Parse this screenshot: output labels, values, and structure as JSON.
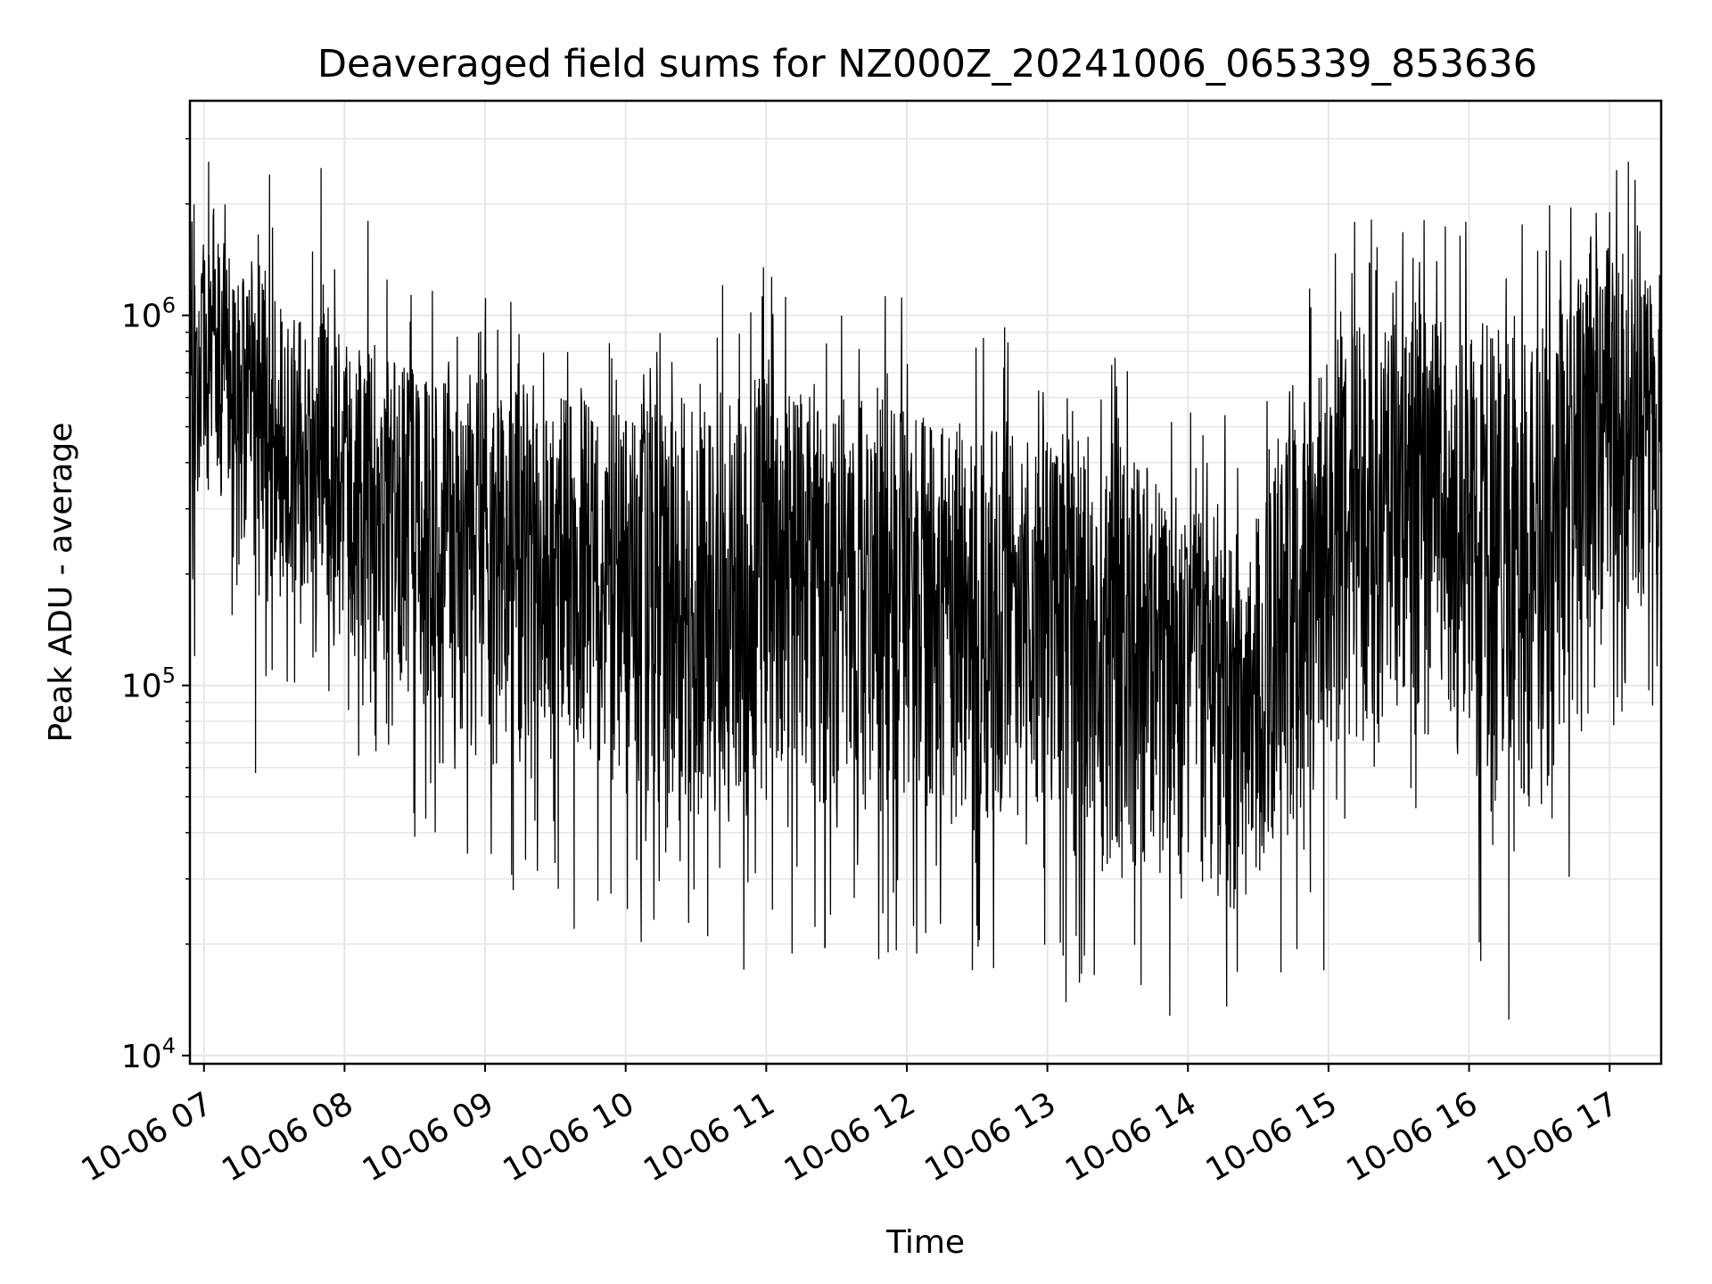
{
  "chart_data": {
    "type": "line",
    "title": "Deaveraged field sums for NZ000Z_20241006_065339_853636",
    "xlabel": "Time",
    "ylabel": "Peak ADU - average",
    "yscale": "log",
    "ylim": [
      9500,
      3800000
    ],
    "xlim": [
      "2024-10-06 06:54",
      "2024-10-06 17:22"
    ],
    "grid": true,
    "line_color": "#000000",
    "x_ticks": [
      {
        "value": "2024-10-06 07:00",
        "label": "10-06 07"
      },
      {
        "value": "2024-10-06 08:00",
        "label": "10-06 08"
      },
      {
        "value": "2024-10-06 09:00",
        "label": "10-06 09"
      },
      {
        "value": "2024-10-06 10:00",
        "label": "10-06 10"
      },
      {
        "value": "2024-10-06 11:00",
        "label": "10-06 11"
      },
      {
        "value": "2024-10-06 12:00",
        "label": "10-06 12"
      },
      {
        "value": "2024-10-06 13:00",
        "label": "10-06 13"
      },
      {
        "value": "2024-10-06 14:00",
        "label": "10-06 14"
      },
      {
        "value": "2024-10-06 15:00",
        "label": "10-06 15"
      },
      {
        "value": "2024-10-06 16:00",
        "label": "10-06 16"
      },
      {
        "value": "2024-10-06 17:00",
        "label": "10-06 17"
      }
    ],
    "y_ticks": [
      {
        "value": 10000,
        "base": "10",
        "exp": "4"
      },
      {
        "value": 100000,
        "base": "10",
        "exp": "5"
      },
      {
        "value": 1000000,
        "base": "10",
        "exp": "6"
      }
    ],
    "series": [
      {
        "envelope": {
          "times": [
            "2024-10-06 06:54",
            "2024-10-06 07:00",
            "2024-10-06 07:30",
            "2024-10-06 08:00",
            "2024-10-06 08:30",
            "2024-10-06 09:00",
            "2024-10-06 09:30",
            "2024-10-06 10:00",
            "2024-10-06 10:30",
            "2024-10-06 11:00",
            "2024-10-06 11:30",
            "2024-10-06 12:00",
            "2024-10-06 12:30",
            "2024-10-06 13:00",
            "2024-10-06 13:30",
            "2024-10-06 14:00",
            "2024-10-06 14:30",
            "2024-10-06 15:00",
            "2024-10-06 15:30",
            "2024-10-06 16:00",
            "2024-10-06 16:30",
            "2024-10-06 17:00",
            "2024-10-06 17:22"
          ],
          "typical_low": [
            300000,
            350000,
            180000,
            120000,
            90000,
            70000,
            60000,
            50000,
            40000,
            45000,
            45000,
            45000,
            40000,
            35000,
            30000,
            30000,
            27000,
            60000,
            80000,
            50000,
            45000,
            150000,
            150000
          ],
          "typical_high": [
            1300000,
            1600000,
            1200000,
            900000,
            700000,
            700000,
            600000,
            600000,
            600000,
            700000,
            600000,
            600000,
            500000,
            500000,
            450000,
            350000,
            300000,
            900000,
            1000000,
            1000000,
            1000000,
            1600000,
            1200000
          ]
        },
        "notable_points": [
          {
            "t": "2024-10-06 06:56",
            "v": 120000
          },
          {
            "t": "2024-10-06 07:02",
            "v": 2600000
          },
          {
            "t": "2024-10-06 07:28",
            "v": 2400000
          },
          {
            "t": "2024-10-06 07:50",
            "v": 2500000
          },
          {
            "t": "2024-10-06 07:12",
            "v": 155000
          },
          {
            "t": "2024-10-06 07:22",
            "v": 58000
          },
          {
            "t": "2024-10-06 08:30",
            "v": 39000
          },
          {
            "t": "2024-10-06 08:10",
            "v": 1800000
          },
          {
            "t": "2024-10-06 09:12",
            "v": 28000
          },
          {
            "t": "2024-10-06 09:38",
            "v": 22000
          },
          {
            "t": "2024-10-06 10:35",
            "v": 21000
          },
          {
            "t": "2024-10-06 11:25",
            "v": 19500
          },
          {
            "t": "2024-10-06 11:52",
            "v": 19000
          },
          {
            "t": "2024-10-06 12:28",
            "v": 17000
          },
          {
            "t": "2024-10-06 13:20",
            "v": 16500
          },
          {
            "t": "2024-10-06 13:40",
            "v": 15500
          },
          {
            "t": "2024-10-06 14:58",
            "v": 17000
          },
          {
            "t": "2024-10-06 15:10",
            "v": 1300000
          },
          {
            "t": "2024-10-06 16:05",
            "v": 18000
          },
          {
            "t": "2024-10-06 16:17",
            "v": 12500
          },
          {
            "t": "2024-10-06 17:00",
            "v": 1900000
          },
          {
            "t": "2024-10-06 17:08",
            "v": 2600000
          },
          {
            "t": "2024-10-06 17:20",
            "v": 200000
          }
        ]
      }
    ]
  }
}
